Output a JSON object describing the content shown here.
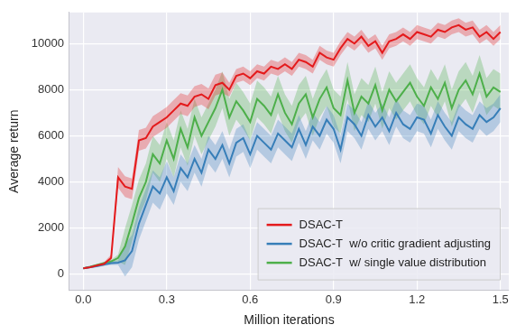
{
  "chart_data": {
    "type": "line",
    "x_label": "Million iterations",
    "y_label": "Average return",
    "x": [
      0,
      0.025,
      0.05,
      0.075,
      0.1,
      0.125,
      0.15,
      0.175,
      0.2,
      0.225,
      0.25,
      0.275,
      0.3,
      0.325,
      0.35,
      0.375,
      0.4,
      0.425,
      0.45,
      0.475,
      0.5,
      0.525,
      0.55,
      0.575,
      0.6,
      0.625,
      0.65,
      0.675,
      0.7,
      0.725,
      0.75,
      0.775,
      0.8,
      0.825,
      0.85,
      0.875,
      0.9,
      0.925,
      0.95,
      0.975,
      1,
      1.025,
      1.05,
      1.075,
      1.1,
      1.125,
      1.15,
      1.175,
      1.2,
      1.225,
      1.25,
      1.275,
      1.3,
      1.325,
      1.35,
      1.375,
      1.4,
      1.425,
      1.45,
      1.475,
      1.5
    ],
    "xlim": [
      -0.05,
      1.53
    ],
    "xticks": [
      {
        "value": 0,
        "label": "0.0"
      },
      0.3,
      0.6,
      0.9,
      1.2,
      1.5
    ],
    "ylim": [
      -700,
      11350
    ],
    "yticks": [
      0,
      2000,
      4000,
      6000,
      8000,
      10000
    ],
    "grid": true,
    "legend": "lower right",
    "series": [
      {
        "name": "DSAC-T",
        "color": "#e41a1c",
        "values": [
          250,
          300,
          380,
          450,
          700,
          4200,
          3800,
          3700,
          5800,
          5900,
          6400,
          6600,
          6800,
          7100,
          7400,
          7300,
          7700,
          7800,
          7600,
          8200,
          8300,
          8000,
          8600,
          8700,
          8500,
          8800,
          8700,
          9000,
          8900,
          9100,
          8900,
          9300,
          9200,
          9000,
          9600,
          9400,
          9300,
          9800,
          10200,
          10000,
          10300,
          9900,
          10100,
          9600,
          10100,
          10200,
          10400,
          10200,
          10500,
          10400,
          10300,
          10600,
          10500,
          10700,
          10800,
          10600,
          10700,
          10300,
          10500,
          10200,
          10500
        ],
        "error": [
          30,
          40,
          50,
          80,
          150,
          450,
          450,
          450,
          450,
          450,
          450,
          450,
          450,
          450,
          450,
          450,
          450,
          450,
          450,
          450,
          450,
          300,
          300,
          300,
          300,
          300,
          300,
          300,
          300,
          300,
          300,
          300,
          300,
          300,
          300,
          300,
          300,
          300,
          300,
          300,
          300,
          300,
          300,
          300,
          300,
          300,
          300,
          300,
          300,
          300,
          300,
          300,
          300,
          300,
          300,
          300,
          300,
          300,
          300,
          300,
          300
        ]
      },
      {
        "name": "DSAC-T  w/o critic gradient adjusting",
        "color": "#377eb8",
        "values": [
          250,
          300,
          350,
          420,
          480,
          500,
          600,
          1000,
          2200,
          3000,
          3800,
          3500,
          4200,
          3600,
          4600,
          4200,
          5000,
          4400,
          5400,
          5000,
          5600,
          4800,
          5700,
          5900,
          5200,
          6000,
          5700,
          5400,
          6100,
          5800,
          5500,
          6300,
          5600,
          6400,
          6000,
          6700,
          6300,
          5400,
          6800,
          6500,
          6000,
          6900,
          6400,
          6800,
          6200,
          7000,
          6500,
          6300,
          6800,
          6700,
          6100,
          6900,
          6400,
          6000,
          6800,
          6500,
          6300,
          6900,
          6600,
          6800,
          7200
        ],
        "error": [
          30,
          40,
          50,
          60,
          80,
          100,
          700,
          700,
          700,
          700,
          700,
          700,
          700,
          600,
          600,
          600,
          600,
          600,
          600,
          600,
          600,
          600,
          600,
          600,
          600,
          600,
          600,
          600,
          600,
          600,
          600,
          600,
          600,
          600,
          600,
          600,
          600,
          600,
          600,
          600,
          600,
          600,
          600,
          600,
          600,
          600,
          600,
          600,
          600,
          600,
          600,
          600,
          600,
          600,
          600,
          600,
          600,
          600,
          600,
          600,
          600
        ]
      },
      {
        "name": "DSAC-T  w/ single value distribution",
        "color": "#4daf4a",
        "values": [
          250,
          320,
          400,
          480,
          550,
          700,
          1200,
          2200,
          3300,
          4000,
          5200,
          4800,
          5800,
          5000,
          6300,
          5500,
          6800,
          6000,
          6600,
          7200,
          8000,
          6800,
          7500,
          7100,
          6600,
          7600,
          7300,
          6900,
          7800,
          7000,
          6500,
          7400,
          7800,
          6800,
          7600,
          8100,
          7200,
          6900,
          8400,
          7000,
          7700,
          7400,
          8200,
          7100,
          8000,
          7500,
          7900,
          8300,
          7700,
          7300,
          8100,
          7600,
          8300,
          7200,
          8000,
          8400,
          7800,
          8700,
          7700,
          8100,
          7900
        ],
        "error": [
          30,
          40,
          50,
          60,
          80,
          150,
          800,
          800,
          800,
          800,
          800,
          800,
          800,
          800,
          800,
          800,
          800,
          800,
          800,
          800,
          800,
          800,
          800,
          800,
          800,
          800,
          800,
          800,
          800,
          800,
          800,
          800,
          800,
          800,
          800,
          800,
          800,
          800,
          800,
          800,
          800,
          800,
          800,
          800,
          800,
          800,
          800,
          800,
          800,
          800,
          800,
          800,
          800,
          800,
          800,
          800,
          800,
          800,
          800,
          800,
          800
        ]
      }
    ]
  }
}
